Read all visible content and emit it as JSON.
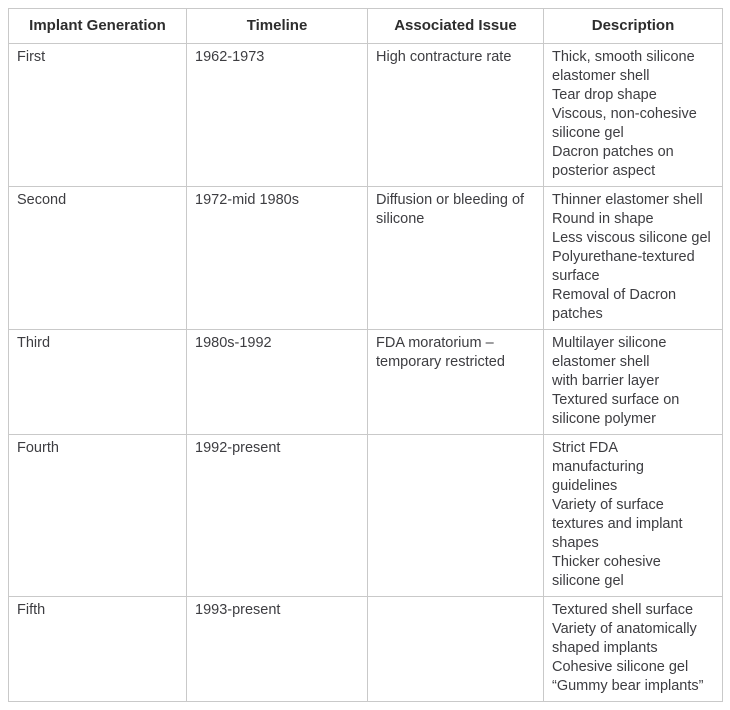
{
  "table": {
    "columns": [
      "Implant Generation",
      "Timeline",
      "Associated Issue",
      "Description"
    ],
    "rows": [
      {
        "generation": "First",
        "timeline": "1962-1973",
        "issue": "High contracture rate",
        "description": [
          "Thick, smooth silicone elastomer shell",
          "Tear drop shape",
          "Viscous, non-cohesive silicone gel",
          "Dacron patches on posterior aspect"
        ]
      },
      {
        "generation": "Second",
        "timeline": "1972-mid 1980s",
        "issue": "Diffusion or bleeding of silicone",
        "description": [
          "Thinner elastomer shell",
          "Round in shape",
          "Less viscous silicone gel",
          "Polyurethane-textured surface",
          "Removal of Dacron patches"
        ]
      },
      {
        "generation": "Third",
        "timeline": "1980s-1992",
        "issue": "FDA moratorium – temporary restricted",
        "description": [
          "Multilayer silicone elastomer shell",
          "with barrier layer",
          "Textured surface on silicone polymer"
        ]
      },
      {
        "generation": "Fourth",
        "timeline": "1992-present",
        "issue": "",
        "description": [
          "Strict FDA manufacturing guidelines",
          "Variety of surface textures and implant shapes",
          "Thicker cohesive silicone gel"
        ]
      },
      {
        "generation": "Fifth",
        "timeline": "1993-present",
        "issue": "",
        "description": [
          "Textured shell surface",
          "Variety of anatomically shaped implants",
          "Cohesive silicone gel",
          "“Gummy bear implants”"
        ]
      }
    ]
  },
  "colors": {
    "border": "#c9c9c9",
    "header_text": "#2d2d2d",
    "body_text": "#3d3d41",
    "background": "#ffffff"
  }
}
